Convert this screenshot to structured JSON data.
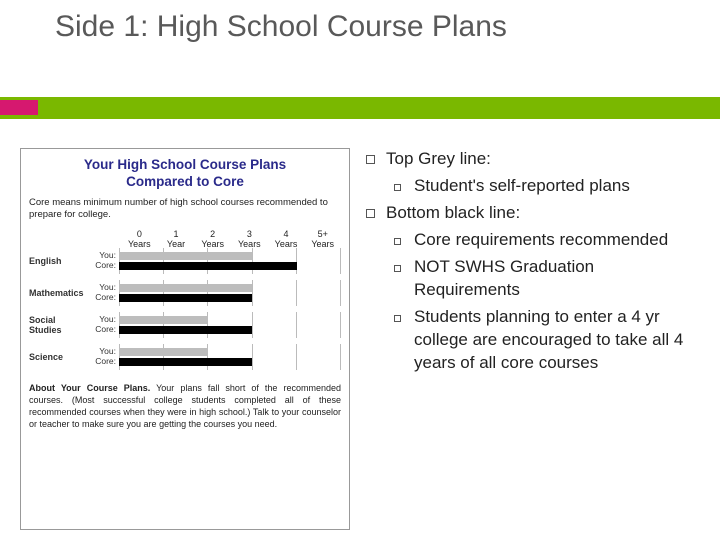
{
  "title": "Side 1:  High School Course Plans",
  "accent_bar_color": "#7ab800",
  "accent_pink_color": "#d6186f",
  "left_box": {
    "title_l1": "Your High School Course Plans",
    "title_l2": "Compared to Core",
    "title_color": "#2a2a8a",
    "subtext": "Core means minimum number of high school courses recommended to prepare for college.",
    "year_headers": [
      {
        "n": "0",
        "u": "Years"
      },
      {
        "n": "1",
        "u": "Year"
      },
      {
        "n": "2",
        "u": "Years"
      },
      {
        "n": "3",
        "u": "Years"
      },
      {
        "n": "4",
        "u": "Years"
      },
      {
        "n": "5+",
        "u": "Years"
      }
    ],
    "you_label": "You:",
    "core_label": "Core:",
    "subjects": [
      {
        "name": "English",
        "you_pct": 60,
        "core_pct": 80
      },
      {
        "name": "Mathematics",
        "you_pct": 60,
        "core_pct": 60
      },
      {
        "name": "Social Studies",
        "you_pct": 40,
        "core_pct": 60
      },
      {
        "name": "Science",
        "you_pct": 40,
        "core_pct": 60
      }
    ],
    "grey_color": "#bdbdbd",
    "black_color": "#000000",
    "about_bold": "About Your Course Plans.",
    "about_text": " Your plans fall short of the recommended courses. (Most successful college students completed all of these recommended courses when they were in high school.) Talk to your counselor or teacher to make sure you are getting the courses you need."
  },
  "right": {
    "items": [
      {
        "text": "Top Grey line:",
        "sub": [
          {
            "text": "Student's self-reported plans"
          }
        ]
      },
      {
        "text": "Bottom black line:",
        "sub": [
          {
            "text": "Core requirements recommended"
          },
          {
            "text": "NOT SWHS Graduation Requirements"
          },
          {
            "text": "Students planning to enter a 4 yr college are encouraged to take all 4 years of all core courses"
          }
        ]
      }
    ]
  }
}
